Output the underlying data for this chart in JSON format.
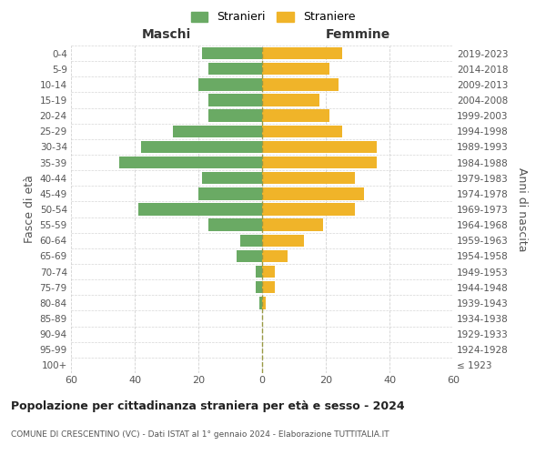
{
  "age_groups": [
    "100+",
    "95-99",
    "90-94",
    "85-89",
    "80-84",
    "75-79",
    "70-74",
    "65-69",
    "60-64",
    "55-59",
    "50-54",
    "45-49",
    "40-44",
    "35-39",
    "30-34",
    "25-29",
    "20-24",
    "15-19",
    "10-14",
    "5-9",
    "0-4"
  ],
  "birth_years": [
    "≤ 1923",
    "1924-1928",
    "1929-1933",
    "1934-1938",
    "1939-1943",
    "1944-1948",
    "1949-1953",
    "1954-1958",
    "1959-1963",
    "1964-1968",
    "1969-1973",
    "1974-1978",
    "1979-1983",
    "1984-1988",
    "1989-1993",
    "1994-1998",
    "1999-2003",
    "2004-2008",
    "2009-2013",
    "2014-2018",
    "2019-2023"
  ],
  "maschi": [
    0,
    0,
    0,
    0,
    1,
    2,
    2,
    8,
    7,
    17,
    39,
    20,
    19,
    45,
    38,
    28,
    17,
    17,
    20,
    17,
    19
  ],
  "femmine": [
    0,
    0,
    0,
    0,
    1,
    4,
    4,
    8,
    13,
    19,
    29,
    32,
    29,
    36,
    36,
    25,
    21,
    18,
    24,
    21,
    25
  ],
  "color_maschi": "#6aaa64",
  "color_femmine": "#f0b429",
  "title": "Popolazione per cittadinanza straniera per età e sesso - 2024",
  "subtitle": "COMUNE DI CRESCENTINO (VC) - Dati ISTAT al 1° gennaio 2024 - Elaborazione TUTTITALIA.IT",
  "ylabel_left": "Fasce di età",
  "ylabel_right": "Anni di nascita",
  "header_left": "Maschi",
  "header_right": "Femmine",
  "xlim": 60,
  "legend_stranieri": "Stranieri",
  "legend_straniere": "Straniere",
  "bg_color": "#ffffff",
  "grid_color": "#cccccc",
  "text_color": "#555555",
  "title_color": "#222222"
}
